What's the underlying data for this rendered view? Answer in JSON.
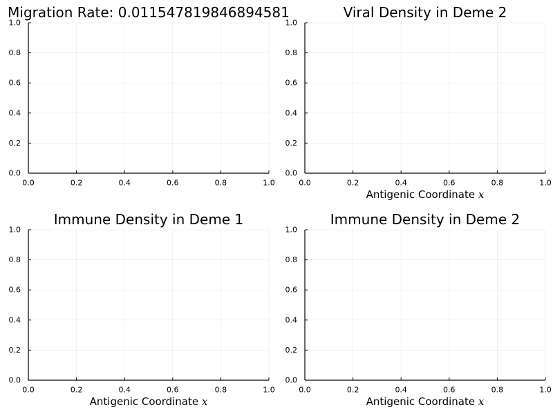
{
  "chart_data": [
    {
      "type": "line",
      "title": "Migration Rate: 0.011547819846894581",
      "xlabel": "",
      "xlim": [
        0,
        1
      ],
      "ylim": [
        0,
        1
      ],
      "xticks": [
        "0.0",
        "0.2",
        "0.4",
        "0.6",
        "0.8",
        "1.0"
      ],
      "yticks": [
        "0.0",
        "0.2",
        "0.4",
        "0.6",
        "0.8",
        "1.0"
      ],
      "grid": true,
      "series": []
    },
    {
      "type": "line",
      "title": "Viral Density in Deme 2",
      "xlabel": "Antigenic Coordinate x",
      "xlim": [
        0,
        1
      ],
      "ylim": [
        0,
        1
      ],
      "xticks": [
        "0.0",
        "0.2",
        "0.4",
        "0.6",
        "0.8",
        "1.0"
      ],
      "yticks": [
        "0.0",
        "0.2",
        "0.4",
        "0.6",
        "0.8",
        "1.0"
      ],
      "grid": true,
      "series": []
    },
    {
      "type": "line",
      "title": "Immune Density in Deme 1",
      "xlabel": "Antigenic Coordinate x",
      "xlim": [
        0,
        1
      ],
      "ylim": [
        0,
        1
      ],
      "xticks": [
        "0.0",
        "0.2",
        "0.4",
        "0.6",
        "0.8",
        "1.0"
      ],
      "yticks": [
        "0.0",
        "0.2",
        "0.4",
        "0.6",
        "0.8",
        "1.0"
      ],
      "grid": true,
      "series": []
    },
    {
      "type": "line",
      "title": "Immune Density in Deme 2",
      "xlabel": "Antigenic Coordinate x",
      "xlim": [
        0,
        1
      ],
      "ylim": [
        0,
        1
      ],
      "xticks": [
        "0.0",
        "0.2",
        "0.4",
        "0.6",
        "0.8",
        "1.0"
      ],
      "yticks": [
        "0.0",
        "0.2",
        "0.4",
        "0.6",
        "0.8",
        "1.0"
      ],
      "grid": true,
      "series": []
    }
  ]
}
